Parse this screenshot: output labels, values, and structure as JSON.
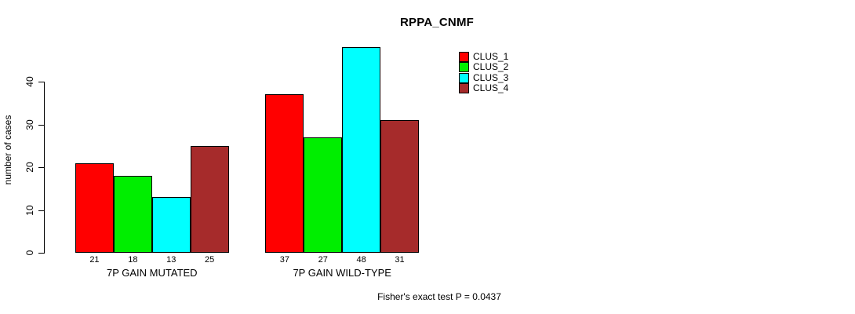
{
  "title": "RPPA_CNMF",
  "footer": "Fisher's exact test P = 0.0437",
  "chart_data": {
    "type": "bar",
    "grouped": true,
    "title": "RPPA_CNMF",
    "ylabel": "number of cases",
    "xlabel": "",
    "categories": [
      "7P GAIN MUTATED",
      "7P GAIN WILD-TYPE"
    ],
    "series": [
      {
        "name": "CLUS_1",
        "color": "#FF0000",
        "values": [
          21,
          37
        ]
      },
      {
        "name": "CLUS_2",
        "color": "#00EE00",
        "values": [
          18,
          27
        ]
      },
      {
        "name": "CLUS_3",
        "color": "#00FFFF",
        "values": [
          13,
          48
        ]
      },
      {
        "name": "CLUS_4",
        "color": "#A62B2B",
        "values": [
          25,
          31
        ]
      }
    ],
    "yticks": [
      0,
      10,
      20,
      30,
      40
    ],
    "ylim": [
      0,
      48.9
    ],
    "bar_value_labels": [
      [
        21,
        18,
        13,
        25
      ],
      [
        37,
        27,
        48,
        31
      ]
    ],
    "legend_position": "top-right",
    "grid": false,
    "annotation": "Fisher's exact test P = 0.0437"
  }
}
